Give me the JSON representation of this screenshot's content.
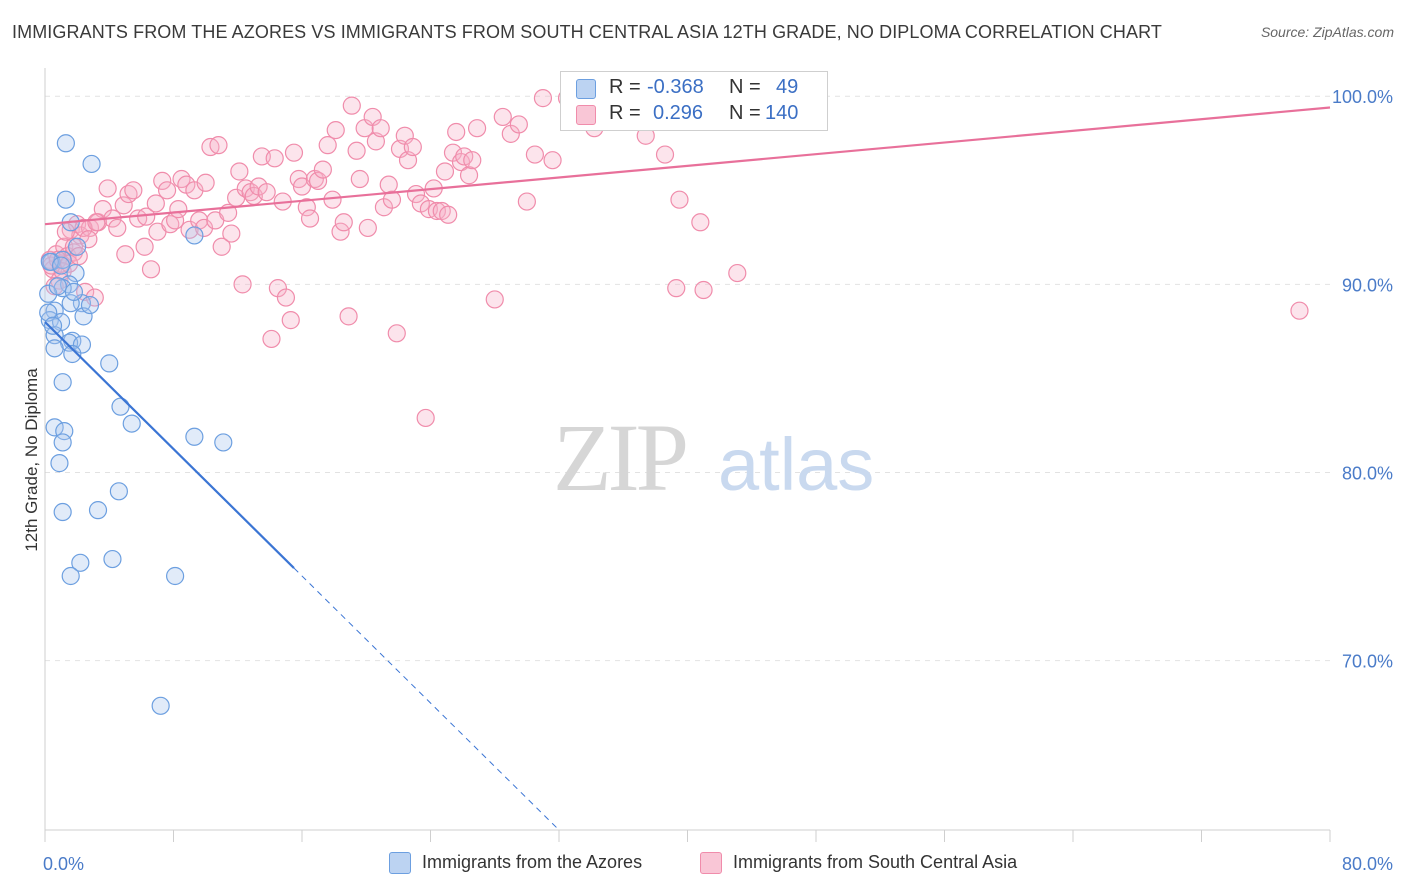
{
  "title": "IMMIGRANTS FROM THE AZORES VS IMMIGRANTS FROM SOUTH CENTRAL ASIA 12TH GRADE, NO DIPLOMA CORRELATION CHART",
  "source": "Source: ZipAtlas.com",
  "watermark": {
    "zip": "ZIP",
    "atlas": "atlas"
  },
  "legend": {
    "rows": [
      {
        "r_label": "R =",
        "r_value": "-0.368",
        "n_label": "N =",
        "n_value": "49"
      },
      {
        "r_label": "R =",
        "r_value": "0.296",
        "n_label": "N =",
        "n_value": "140"
      }
    ]
  },
  "bottom_legend": [
    "Immigrants from the Azores",
    "Immigrants from South Central Asia"
  ],
  "chart_data": {
    "type": "scatter",
    "ylabel": "12th Grade, No Diploma",
    "xlim": [
      0,
      80
    ],
    "ylim": [
      61.0,
      101.5
    ],
    "x_tick_labels": [
      "0.0%",
      "80.0%"
    ],
    "y_ticks": [
      100,
      90,
      80,
      70
    ],
    "y_tick_labels": [
      "100.0%",
      "90.0%",
      "80.0%",
      "70.0%"
    ],
    "grid": true,
    "colors": {
      "azores": "#6c9fe0",
      "south_central_asia": "#f08cab",
      "azores_line": "#3b75d4",
      "sca_line": "#e8709a",
      "tick": "#4a7bc8"
    },
    "series": [
      {
        "name": "Immigrants from the Azores",
        "trend": {
          "x1": 0,
          "y1": 88.0,
          "x2": 32,
          "y2": 61.0,
          "solid_to_x": 15.5
        },
        "points": [
          [
            1.3,
            97.5
          ],
          [
            2.9,
            96.4
          ],
          [
            1.3,
            94.5
          ],
          [
            1.6,
            93.3
          ],
          [
            2.0,
            92.0
          ],
          [
            9.3,
            92.6
          ],
          [
            0.4,
            91.2
          ],
          [
            1.1,
            91.3
          ],
          [
            1.9,
            90.6
          ],
          [
            1.5,
            90.0
          ],
          [
            1.1,
            89.8
          ],
          [
            2.3,
            89.0
          ],
          [
            1.6,
            89.0
          ],
          [
            0.6,
            88.6
          ],
          [
            0.3,
            88.1
          ],
          [
            1.0,
            88.0
          ],
          [
            2.4,
            88.3
          ],
          [
            0.6,
            87.3
          ],
          [
            1.7,
            87.0
          ],
          [
            1.5,
            86.9
          ],
          [
            2.3,
            86.8
          ],
          [
            1.7,
            86.3
          ],
          [
            0.6,
            86.6
          ],
          [
            4.0,
            85.8
          ],
          [
            1.1,
            84.8
          ],
          [
            4.7,
            83.5
          ],
          [
            5.4,
            82.6
          ],
          [
            0.6,
            82.4
          ],
          [
            1.2,
            82.2
          ],
          [
            9.3,
            81.9
          ],
          [
            11.1,
            81.6
          ],
          [
            1.1,
            81.6
          ],
          [
            0.9,
            80.5
          ],
          [
            4.6,
            79.0
          ],
          [
            1.1,
            77.9
          ],
          [
            3.3,
            78.0
          ],
          [
            4.2,
            75.4
          ],
          [
            2.2,
            75.2
          ],
          [
            1.6,
            74.5
          ],
          [
            8.1,
            74.5
          ],
          [
            7.2,
            67.6
          ],
          [
            0.3,
            91.2
          ],
          [
            0.2,
            88.5
          ],
          [
            0.2,
            89.5
          ],
          [
            1.0,
            91.0
          ],
          [
            0.8,
            89.9
          ],
          [
            0.5,
            87.8
          ],
          [
            1.8,
            89.6
          ],
          [
            2.8,
            88.9
          ]
        ]
      },
      {
        "name": "Immigrants from South Central Asia",
        "trend": {
          "x1": 0,
          "y1": 93.2,
          "x2": 80,
          "y2": 99.4
        },
        "points": [
          [
            0.3,
            91.3
          ],
          [
            0.5,
            90.8
          ],
          [
            0.7,
            91.6
          ],
          [
            0.9,
            90.2
          ],
          [
            1.0,
            91.1
          ],
          [
            1.2,
            92.0
          ],
          [
            1.4,
            91.5
          ],
          [
            1.6,
            92.9
          ],
          [
            1.8,
            91.7
          ],
          [
            2.0,
            93.2
          ],
          [
            2.2,
            92.6
          ],
          [
            2.5,
            89.6
          ],
          [
            2.8,
            93.0
          ],
          [
            3.1,
            89.3
          ],
          [
            3.3,
            93.3
          ],
          [
            3.6,
            94.0
          ],
          [
            3.9,
            95.1
          ],
          [
            4.2,
            93.5
          ],
          [
            4.5,
            93.0
          ],
          [
            4.9,
            94.2
          ],
          [
            5.0,
            91.6
          ],
          [
            5.2,
            94.8
          ],
          [
            5.5,
            95.0
          ],
          [
            5.8,
            93.5
          ],
          [
            6.2,
            92.0
          ],
          [
            6.3,
            93.6
          ],
          [
            6.6,
            90.8
          ],
          [
            6.9,
            94.3
          ],
          [
            7.0,
            92.8
          ],
          [
            7.3,
            95.5
          ],
          [
            7.6,
            95.0
          ],
          [
            7.8,
            93.2
          ],
          [
            8.1,
            93.4
          ],
          [
            8.3,
            94.0
          ],
          [
            8.5,
            95.6
          ],
          [
            8.8,
            95.3
          ],
          [
            9.0,
            92.9
          ],
          [
            9.3,
            95.0
          ],
          [
            9.6,
            93.4
          ],
          [
            9.9,
            93.0
          ],
          [
            10.0,
            95.4
          ],
          [
            10.3,
            97.3
          ],
          [
            10.6,
            93.4
          ],
          [
            10.8,
            97.4
          ],
          [
            11.0,
            92.0
          ],
          [
            11.4,
            93.8
          ],
          [
            11.6,
            92.7
          ],
          [
            11.9,
            94.6
          ],
          [
            12.1,
            96.0
          ],
          [
            12.3,
            90.0
          ],
          [
            12.5,
            95.1
          ],
          [
            12.8,
            94.9
          ],
          [
            13.0,
            94.7
          ],
          [
            13.3,
            95.2
          ],
          [
            13.5,
            96.8
          ],
          [
            13.8,
            94.9
          ],
          [
            14.1,
            87.1
          ],
          [
            14.3,
            96.7
          ],
          [
            14.5,
            89.8
          ],
          [
            14.8,
            94.4
          ],
          [
            15.0,
            89.3
          ],
          [
            15.3,
            88.1
          ],
          [
            15.5,
            97.0
          ],
          [
            15.8,
            95.6
          ],
          [
            16.0,
            95.2
          ],
          [
            16.3,
            94.1
          ],
          [
            16.5,
            93.5
          ],
          [
            16.8,
            95.6
          ],
          [
            17.0,
            95.5
          ],
          [
            17.3,
            96.1
          ],
          [
            17.6,
            97.4
          ],
          [
            17.9,
            94.5
          ],
          [
            18.1,
            98.2
          ],
          [
            18.4,
            92.8
          ],
          [
            18.6,
            93.3
          ],
          [
            18.9,
            88.3
          ],
          [
            19.1,
            99.5
          ],
          [
            19.4,
            97.1
          ],
          [
            19.6,
            95.6
          ],
          [
            19.9,
            98.3
          ],
          [
            20.1,
            93.0
          ],
          [
            20.4,
            98.9
          ],
          [
            20.6,
            97.6
          ],
          [
            20.9,
            98.3
          ],
          [
            21.1,
            94.1
          ],
          [
            21.4,
            95.3
          ],
          [
            21.6,
            94.5
          ],
          [
            21.9,
            87.4
          ],
          [
            22.1,
            97.2
          ],
          [
            22.4,
            97.9
          ],
          [
            22.6,
            96.6
          ],
          [
            22.9,
            97.3
          ],
          [
            23.1,
            94.8
          ],
          [
            23.4,
            94.3
          ],
          [
            23.7,
            82.9
          ],
          [
            23.9,
            94.0
          ],
          [
            24.2,
            95.1
          ],
          [
            24.4,
            93.9
          ],
          [
            24.7,
            93.9
          ],
          [
            24.9,
            96.0
          ],
          [
            25.1,
            93.7
          ],
          [
            25.4,
            97.0
          ],
          [
            25.6,
            98.1
          ],
          [
            25.9,
            96.5
          ],
          [
            26.1,
            96.8
          ],
          [
            26.4,
            95.8
          ],
          [
            26.6,
            96.6
          ],
          [
            26.9,
            98.3
          ],
          [
            28.0,
            89.2
          ],
          [
            28.5,
            98.9
          ],
          [
            29.0,
            98.0
          ],
          [
            29.5,
            98.5
          ],
          [
            30.0,
            94.4
          ],
          [
            30.5,
            96.9
          ],
          [
            31.0,
            99.9
          ],
          [
            31.6,
            96.6
          ],
          [
            32.5,
            99.9
          ],
          [
            32.9,
            99.0
          ],
          [
            34.2,
            98.3
          ],
          [
            36.5,
            99.2
          ],
          [
            37.4,
            97.9
          ],
          [
            38.0,
            99.8
          ],
          [
            38.6,
            96.9
          ],
          [
            39.3,
            89.8
          ],
          [
            39.5,
            94.5
          ],
          [
            40.8,
            93.3
          ],
          [
            41.0,
            89.7
          ],
          [
            43.1,
            90.6
          ],
          [
            78.1,
            88.6
          ],
          [
            0.4,
            91.0
          ],
          [
            0.6,
            89.9
          ],
          [
            0.8,
            91.3
          ],
          [
            1.1,
            90.7
          ],
          [
            1.3,
            92.8
          ],
          [
            1.5,
            91.1
          ],
          [
            1.8,
            92.0
          ],
          [
            2.1,
            91.5
          ],
          [
            2.4,
            93.0
          ],
          [
            2.7,
            92.4
          ],
          [
            3.2,
            93.3
          ]
        ]
      }
    ]
  }
}
